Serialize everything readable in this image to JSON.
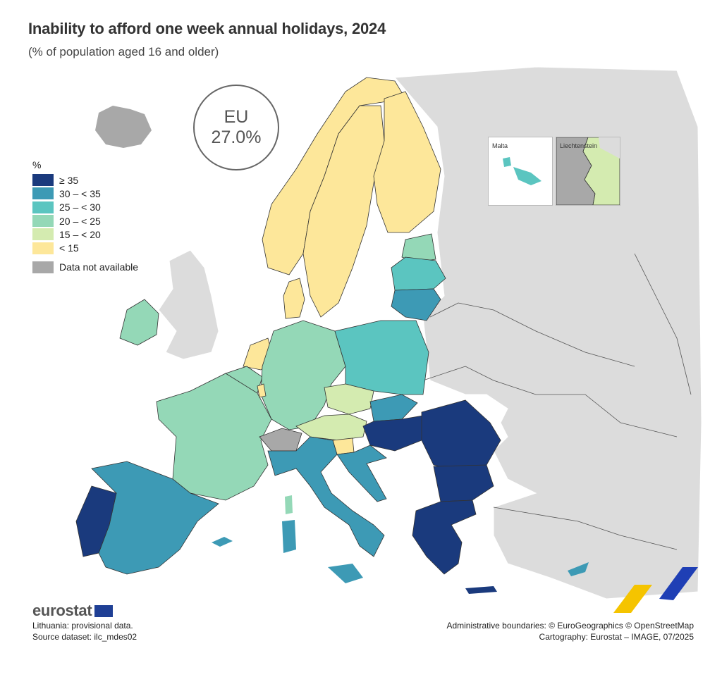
{
  "title": "Inability to afford one week annual holidays, 2024",
  "subtitle": "(% of population aged 16 and older)",
  "eu_badge": {
    "label": "EU",
    "value": "27.0%"
  },
  "legend": {
    "unit": "%",
    "classes": [
      {
        "label": "≥ 35",
        "color": "#1a3a7d"
      },
      {
        "label": "30 – < 35",
        "color": "#3d9ab5"
      },
      {
        "label": "25 – < 30",
        "color": "#5bc5c0"
      },
      {
        "label": "20 – < 25",
        "color": "#94d8b7"
      },
      {
        "label": "15 – < 20",
        "color": "#d4ebb0"
      },
      {
        "label": "< 15",
        "color": "#fde79a"
      }
    ],
    "na": {
      "label": "Data not available",
      "color": "#a8a8a8"
    }
  },
  "insets": {
    "malta": "Malta",
    "liechtenstein": "Liechtenstein"
  },
  "brand": "eurostat",
  "notes": [
    "Lithuania: provisional data.",
    "Source dataset: ilc_mdes02"
  ],
  "credits": [
    "Administrative boundaries: © EuroGeographics © OpenStreetMap",
    "Cartography: Eurostat – IMAGE, 07/2025"
  ],
  "colors": {
    "non_eu": "#dcdcdc",
    "border": "#333333"
  }
}
